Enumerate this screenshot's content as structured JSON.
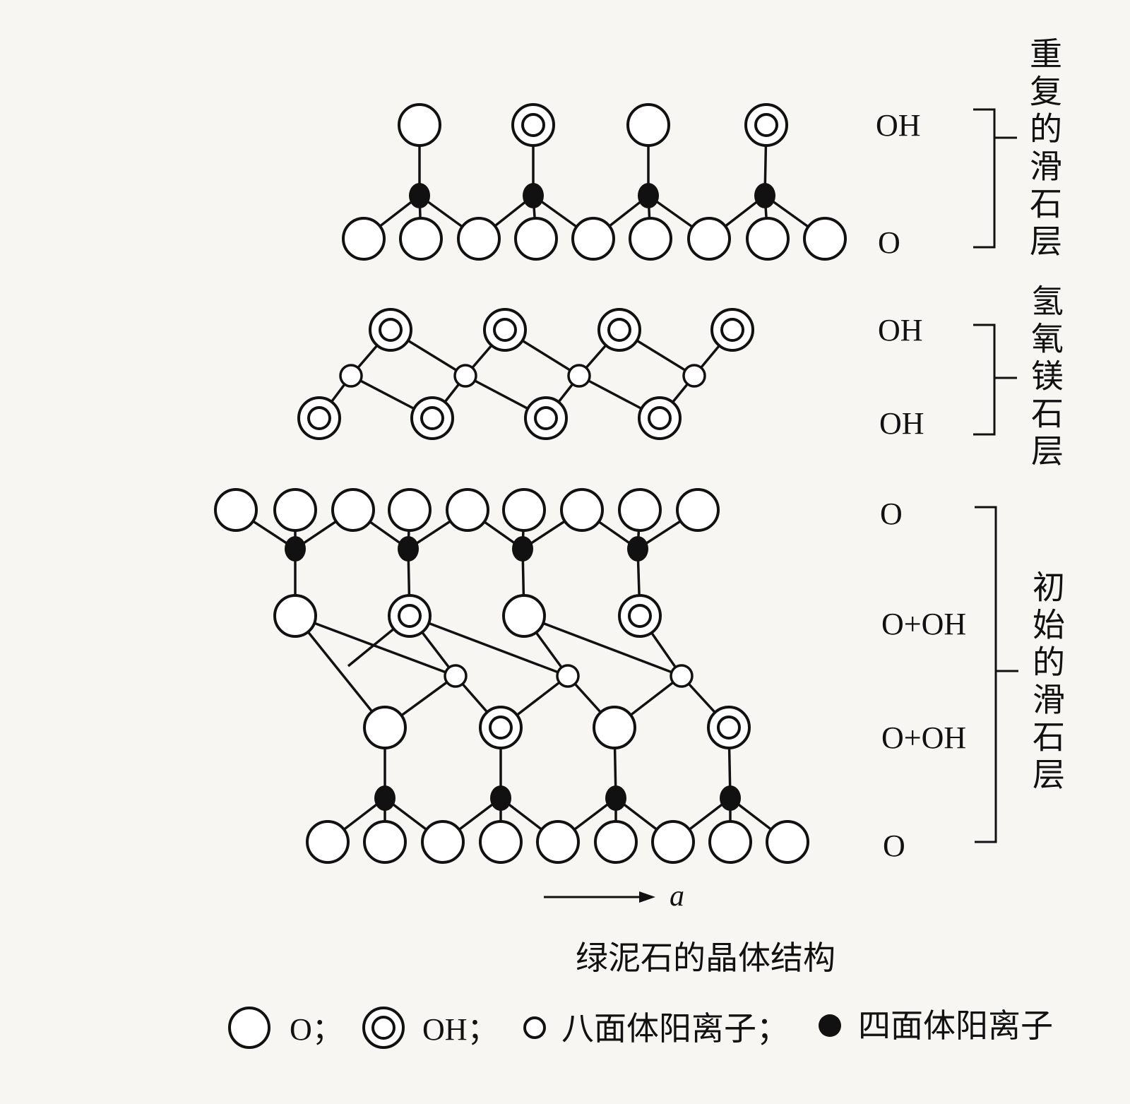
{
  "layers": [
    {
      "name": "重复的滑石层",
      "labels": [
        "OH",
        "O"
      ]
    },
    {
      "name": "氢氧镁石层",
      "labels": [
        "OH",
        "OH"
      ]
    },
    {
      "name": "初始的滑石层",
      "labels": [
        "O",
        "O+OH",
        "O+OH",
        "O"
      ]
    }
  ],
  "axis_label": "a",
  "caption": "绿泥石的晶体结构",
  "legend": [
    {
      "symbol": "open-circle",
      "text": "O；"
    },
    {
      "symbol": "double-circle",
      "text": "OH；"
    },
    {
      "symbol": "small-circle",
      "text": "八面体阳离子；"
    },
    {
      "symbol": "filled-circle",
      "text": "四面体阳离子"
    }
  ]
}
